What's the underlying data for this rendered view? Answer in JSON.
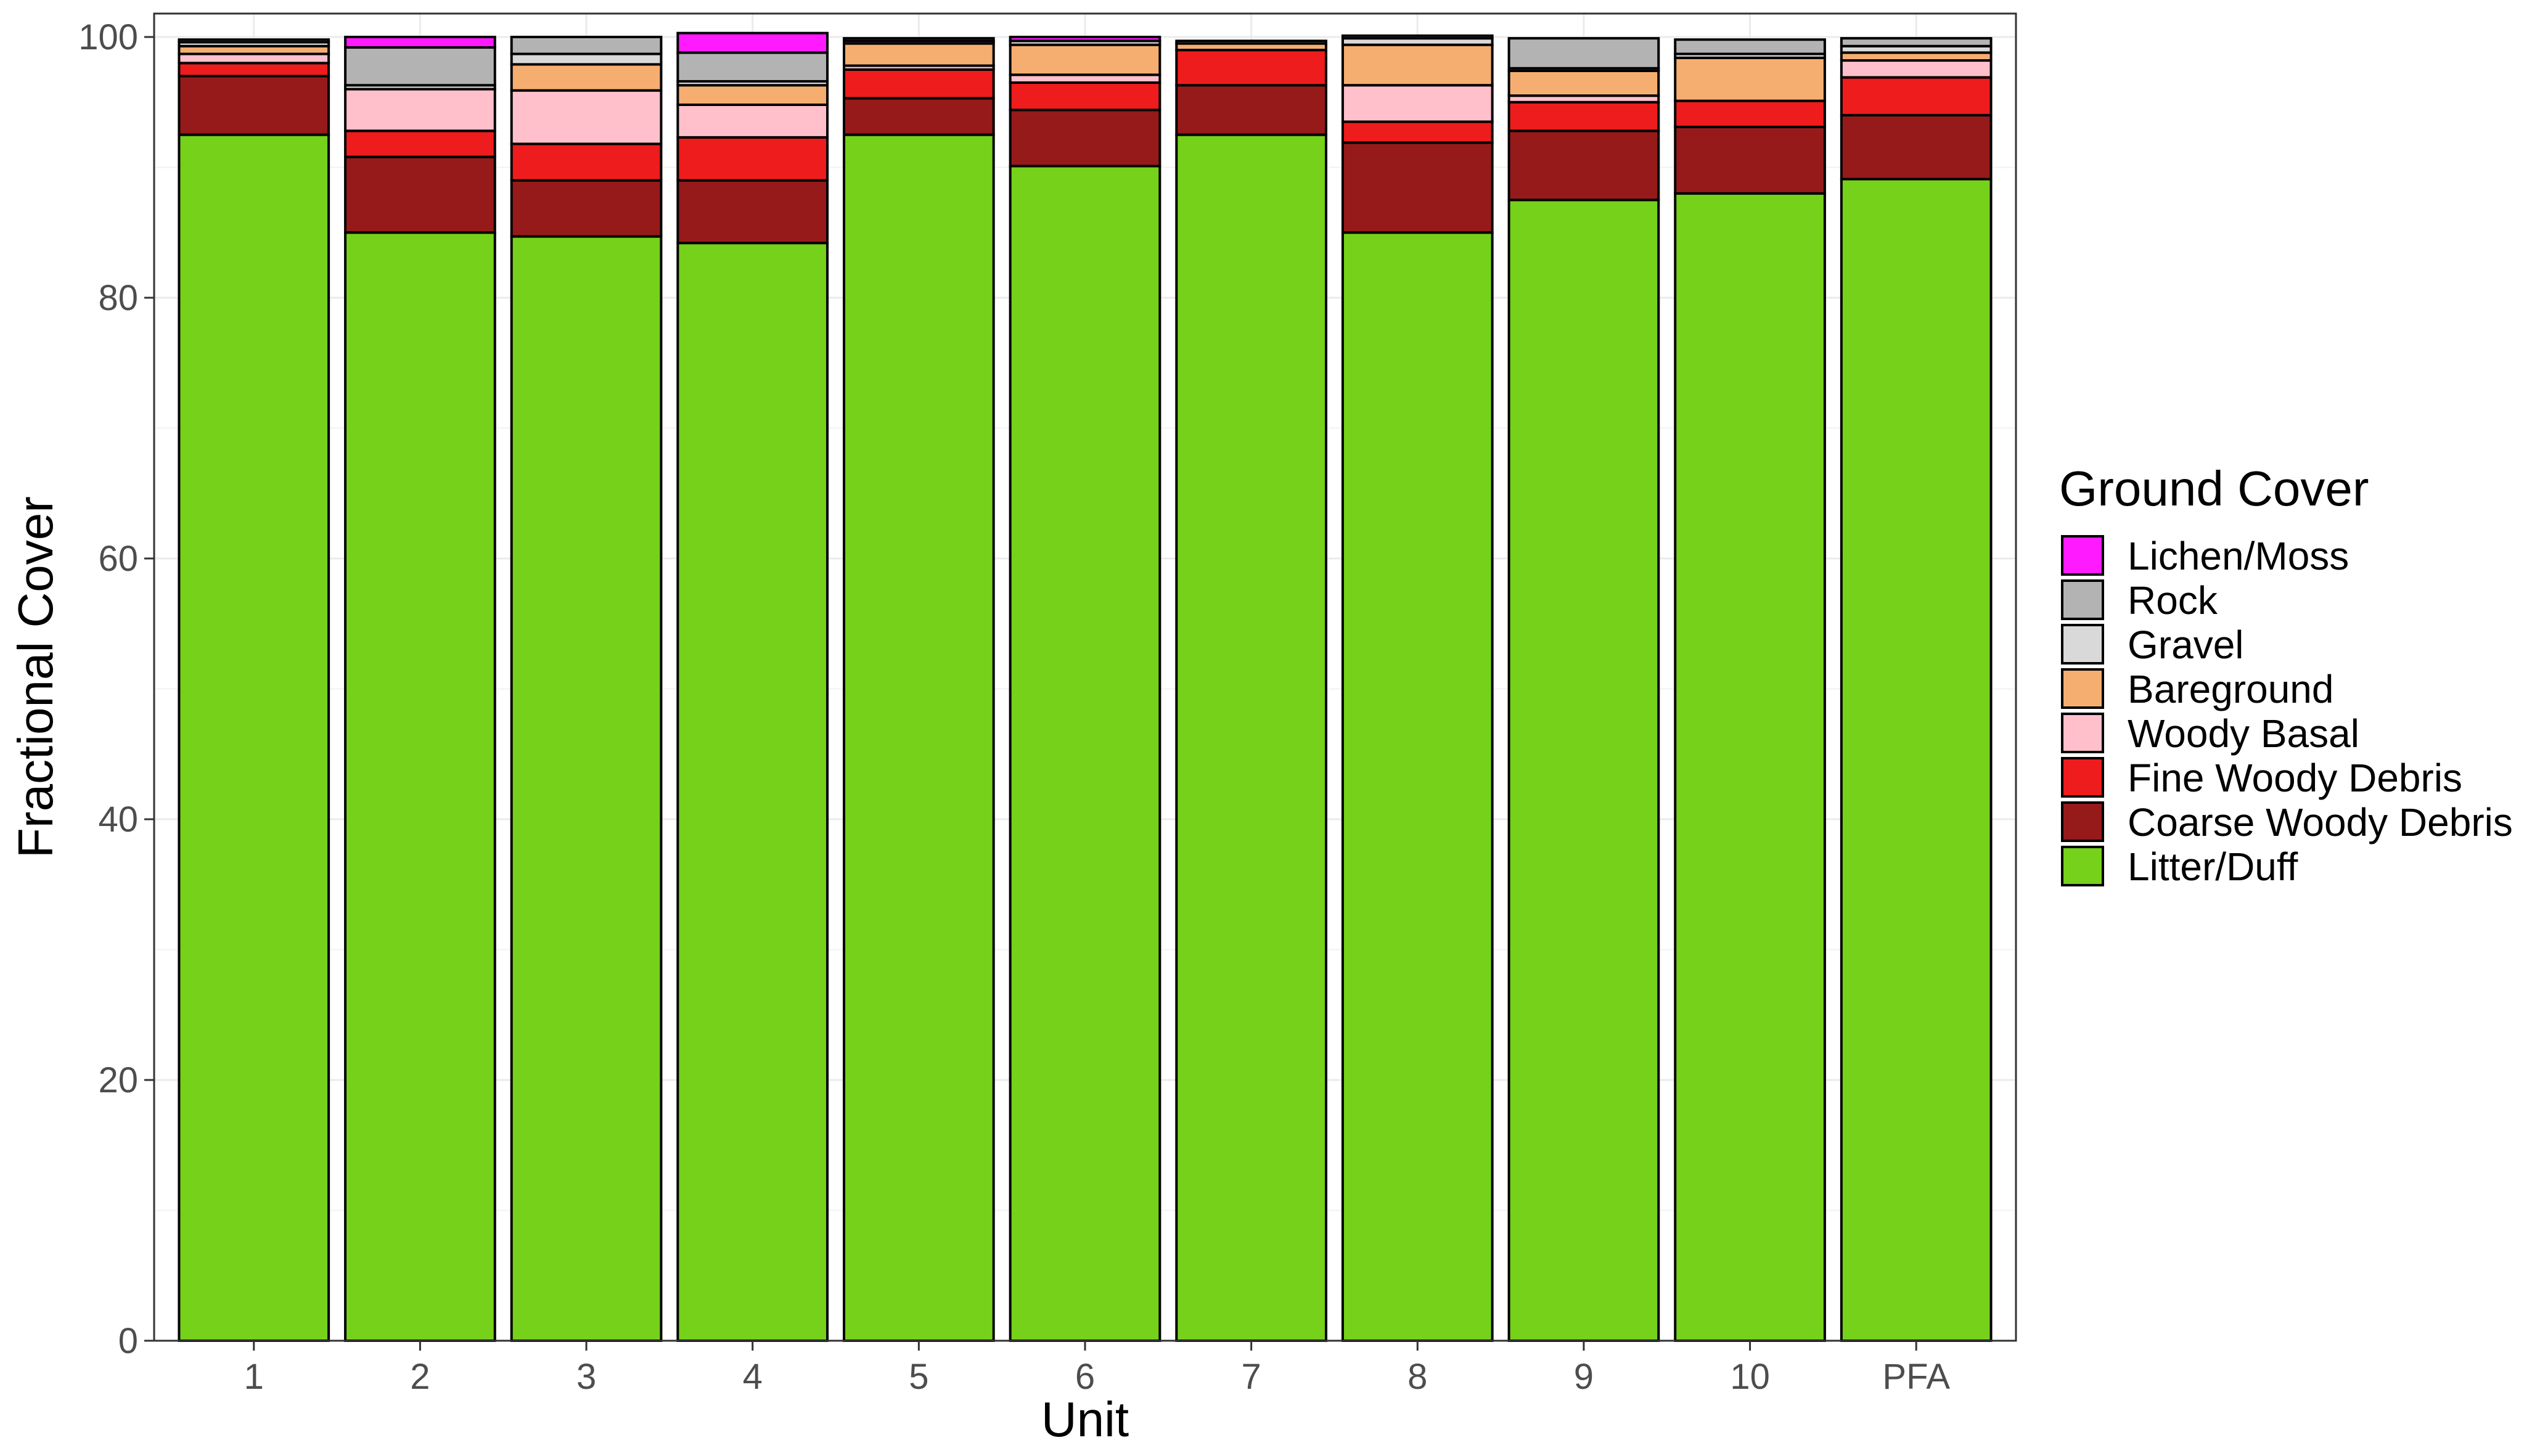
{
  "chart_data": {
    "type": "bar",
    "stacked": true,
    "xlabel": "Unit",
    "ylabel": "Fractional Cover",
    "ylim": [
      0,
      100
    ],
    "yticks": [
      0,
      20,
      40,
      60,
      80,
      100
    ],
    "grid": true,
    "legend_title": "Ground Cover",
    "legend_position": "right",
    "categories": [
      "1",
      "2",
      "3",
      "4",
      "5",
      "6",
      "7",
      "8",
      "9",
      "10",
      "PFA"
    ],
    "series": [
      {
        "name": "Litter/Duff",
        "color": "#76D11A",
        "values": [
          92.5,
          85.0,
          84.7,
          84.2,
          92.5,
          90.1,
          92.5,
          85.0,
          87.5,
          88.0,
          89.1
        ]
      },
      {
        "name": "Coarse Woody Debris",
        "color": "#971A1A",
        "values": [
          4.5,
          5.8,
          4.3,
          4.8,
          2.8,
          4.3,
          3.8,
          6.9,
          5.3,
          5.1,
          4.9
        ]
      },
      {
        "name": "Fine Woody Debris",
        "color": "#EE1C1C",
        "values": [
          1.0,
          2.0,
          2.8,
          3.3,
          2.2,
          2.1,
          2.7,
          1.6,
          2.2,
          2.0,
          2.9
        ]
      },
      {
        "name": "Woody Basal",
        "color": "#FFC0CB",
        "values": [
          0.7,
          3.2,
          4.1,
          2.5,
          0.3,
          0.6,
          0.0,
          2.8,
          0.5,
          0.0,
          1.3
        ]
      },
      {
        "name": "Bareground",
        "color": "#F5AE70",
        "values": [
          0.6,
          0.0,
          2.0,
          1.5,
          1.7,
          2.3,
          0.5,
          3.1,
          1.9,
          3.3,
          0.6
        ]
      },
      {
        "name": "Gravel",
        "color": "#D9D9D9",
        "values": [
          0.3,
          0.3,
          0.8,
          0.3,
          0.2,
          0.3,
          0.2,
          0.5,
          0.2,
          0.3,
          0.5
        ]
      },
      {
        "name": "Rock",
        "color": "#B3B3B3",
        "values": [
          0.2,
          2.9,
          1.3,
          2.2,
          0.0,
          0.0,
          0.0,
          0.2,
          2.3,
          1.1,
          0.6
        ]
      },
      {
        "name": "Lichen/Moss",
        "color": "#FF1AFF",
        "values": [
          0.0,
          0.8,
          0.0,
          1.5,
          0.2,
          0.3,
          0.0,
          0.0,
          0.0,
          0.0,
          0.0
        ]
      }
    ],
    "legend_order": [
      "Lichen/Moss",
      "Rock",
      "Gravel",
      "Bareground",
      "Woody Basal",
      "Fine Woody Debris",
      "Coarse Woody Debris",
      "Litter/Duff"
    ]
  }
}
